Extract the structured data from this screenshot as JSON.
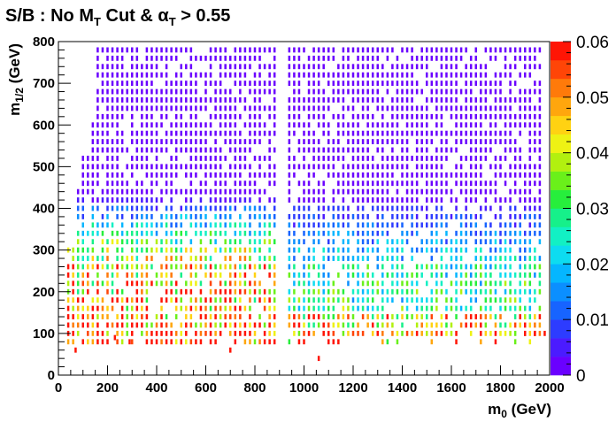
{
  "chart_data": {
    "type": "heatmap",
    "title": {
      "prefix": "S/B :  No M",
      "m_sub": "T",
      "middle": " Cut & ",
      "alpha": "α",
      "alpha_sub": "T",
      "suffix": " > 0.55"
    },
    "xlabel": {
      "main": "m",
      "sub": "0",
      "unit": " (GeV)"
    },
    "ylabel": {
      "main": "m",
      "sub": "1/2",
      "unit": " (GeV)"
    },
    "xlim": [
      0,
      2000
    ],
    "ylim": [
      0,
      800
    ],
    "x_ticks": [
      0,
      200,
      400,
      600,
      800,
      1000,
      1200,
      1400,
      1600,
      1800,
      2000
    ],
    "x_tick_labels": [
      "0",
      "200",
      "400",
      "600",
      "800",
      "1000",
      "1200",
      "1400",
      "1600",
      "1800",
      "2000"
    ],
    "y_ticks": [
      0,
      100,
      200,
      300,
      400,
      500,
      600,
      700,
      800
    ],
    "y_tick_labels": [
      "0",
      "100",
      "200",
      "300",
      "400",
      "500",
      "600",
      "700",
      "800"
    ],
    "colorbar": {
      "zlim": [
        0,
        0.06
      ],
      "ticks": [
        0,
        0.01,
        0.02,
        0.03,
        0.04,
        0.05,
        0.06
      ],
      "tick_labels": [
        "0",
        "0.01",
        "0.02",
        "0.03",
        "0.04",
        "0.05",
        "0.06"
      ]
    },
    "grid": false,
    "legend": "none",
    "cell_size": {
      "dx": 10,
      "dy": 20
    },
    "scan": {
      "x_start": 40,
      "x_step": 20,
      "x_count": 97,
      "y_start": 80,
      "y_step": 20,
      "y_max": 780,
      "note_points": [
        [
          70,
          60
        ],
        [
          230,
          90
        ],
        [
          290,
          80
        ],
        [
          500,
          80
        ],
        [
          700,
          60
        ],
        [
          1060,
          40
        ],
        [
          1900,
          100
        ],
        [
          1940,
          100
        ],
        [
          1980,
          100
        ]
      ]
    }
  }
}
